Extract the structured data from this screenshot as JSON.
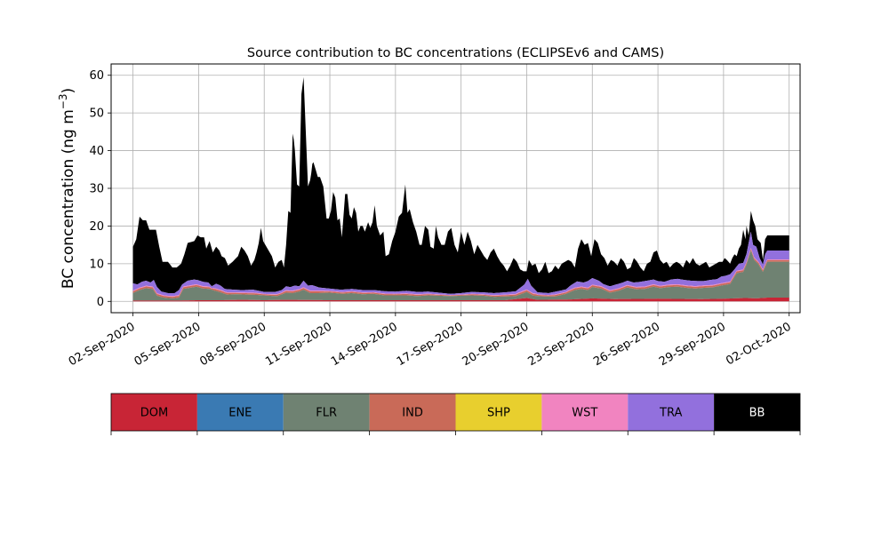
{
  "chart_data": {
    "type": "area",
    "stacked": true,
    "title": "Source contribution to BC concentrations (ECLIPSEv6 and CAMS)",
    "xlabel": "",
    "ylabel": "BC concentration (ng m",
    "ylabel_sup": "−3",
    "ylabel_close": ")",
    "xlim": [
      "2020-09-01T00:00",
      "2020-10-02T12:00"
    ],
    "ylim": [
      -3,
      63
    ],
    "yticks": [
      0,
      10,
      20,
      30,
      40,
      50,
      60
    ],
    "ytick_labels": [
      "0",
      "10",
      "20",
      "30",
      "40",
      "50",
      "60"
    ],
    "xticks": [
      "02-Sep-2020",
      "05-Sep-2020",
      "08-Sep-2020",
      "11-Sep-2020",
      "14-Sep-2020",
      "17-Sep-2020",
      "20-Sep-2020",
      "23-Sep-2020",
      "26-Sep-2020",
      "29-Sep-2020",
      "02-Oct-2020"
    ],
    "grid": true,
    "legend_position": "below plot (colour bar)",
    "legend": [
      {
        "name": "DOM",
        "color": "#c82536"
      },
      {
        "name": "ENE",
        "color": "#3a7ab3"
      },
      {
        "name": "FLR",
        "color": "#6f8272"
      },
      {
        "name": "IND",
        "color": "#c96a58"
      },
      {
        "name": "SHP",
        "color": "#e8cf2e"
      },
      {
        "name": "WST",
        "color": "#f184c0"
      },
      {
        "name": "TRA",
        "color": "#9270dd"
      },
      {
        "name": "BB",
        "color": "#000000"
      }
    ],
    "start_day": 1.0,
    "end_day": 31.0,
    "total_anchors": [
      [
        1.0,
        14.5
      ],
      [
        1.15,
        16.5
      ],
      [
        1.3,
        22.5
      ],
      [
        1.45,
        21.5
      ],
      [
        1.6,
        21.5
      ],
      [
        1.75,
        19.0
      ],
      [
        1.9,
        19.0
      ],
      [
        2.05,
        19.0
      ],
      [
        2.2,
        14.5
      ],
      [
        2.35,
        10.5
      ],
      [
        2.6,
        10.5
      ],
      [
        2.8,
        9.0
      ],
      [
        3.0,
        9.0
      ],
      [
        3.2,
        10.0
      ],
      [
        3.35,
        12.5
      ],
      [
        3.5,
        15.5
      ],
      [
        3.8,
        16.0
      ],
      [
        3.95,
        17.5
      ],
      [
        4.1,
        17.0
      ],
      [
        4.25,
        17.0
      ],
      [
        4.35,
        14.0
      ],
      [
        4.5,
        16.0
      ],
      [
        4.65,
        13.0
      ],
      [
        4.8,
        14.5
      ],
      [
        4.95,
        13.5
      ],
      [
        5.05,
        12.0
      ],
      [
        5.2,
        11.5
      ],
      [
        5.35,
        9.5
      ],
      [
        5.55,
        10.5
      ],
      [
        5.8,
        12.0
      ],
      [
        5.95,
        14.5
      ],
      [
        6.1,
        13.5
      ],
      [
        6.25,
        12.0
      ],
      [
        6.4,
        9.5
      ],
      [
        6.55,
        11.0
      ],
      [
        6.65,
        13.0
      ],
      [
        6.75,
        15.5
      ],
      [
        6.85,
        19.5
      ],
      [
        6.95,
        16.0
      ],
      [
        7.15,
        14.0
      ],
      [
        7.35,
        12.0
      ],
      [
        7.5,
        9.0
      ],
      [
        7.65,
        10.5
      ],
      [
        7.8,
        11.0
      ],
      [
        7.9,
        9.0
      ],
      [
        8.0,
        15.0
      ],
      [
        8.1,
        24.0
      ],
      [
        8.2,
        23.5
      ],
      [
        8.3,
        44.5
      ],
      [
        8.38,
        42.0
      ],
      [
        8.5,
        31.0
      ],
      [
        8.6,
        30.5
      ],
      [
        8.7,
        55.0
      ],
      [
        8.8,
        59.5
      ],
      [
        8.9,
        45.0
      ],
      [
        9.0,
        30.5
      ],
      [
        9.12,
        32.5
      ],
      [
        9.22,
        37.5
      ],
      [
        9.35,
        35.0
      ],
      [
        9.45,
        33.0
      ],
      [
        9.55,
        33.0
      ],
      [
        9.7,
        30.5
      ],
      [
        9.85,
        22.0
      ],
      [
        9.95,
        22.0
      ],
      [
        10.05,
        24.0
      ],
      [
        10.15,
        29.0
      ],
      [
        10.25,
        27.5
      ],
      [
        10.35,
        21.5
      ],
      [
        10.45,
        22.0
      ],
      [
        10.55,
        17.0
      ],
      [
        10.7,
        28.5
      ],
      [
        10.8,
        28.5
      ],
      [
        10.9,
        23.0
      ],
      [
        11.0,
        22.0
      ],
      [
        11.1,
        25.0
      ],
      [
        11.2,
        23.5
      ],
      [
        11.3,
        18.5
      ],
      [
        11.4,
        20.0
      ],
      [
        11.5,
        20.0
      ],
      [
        11.6,
        18.5
      ],
      [
        11.75,
        21.0
      ],
      [
        11.85,
        19.5
      ],
      [
        11.95,
        21.0
      ],
      [
        12.05,
        25.5
      ],
      [
        12.15,
        20.0
      ],
      [
        12.3,
        17.5
      ],
      [
        12.45,
        18.5
      ],
      [
        12.55,
        12.0
      ],
      [
        12.7,
        12.5
      ],
      [
        12.85,
        16.0
      ],
      [
        13.0,
        18.5
      ],
      [
        13.15,
        22.5
      ],
      [
        13.3,
        23.5
      ],
      [
        13.45,
        31.0
      ],
      [
        13.55,
        23.5
      ],
      [
        13.65,
        24.5
      ],
      [
        13.8,
        21.0
      ],
      [
        13.95,
        18.5
      ],
      [
        14.1,
        15.0
      ],
      [
        14.2,
        15.0
      ],
      [
        14.35,
        20.0
      ],
      [
        14.5,
        19.0
      ],
      [
        14.6,
        14.5
      ],
      [
        14.75,
        14.0
      ],
      [
        14.85,
        20.0
      ],
      [
        14.95,
        17.0
      ],
      [
        15.1,
        15.0
      ],
      [
        15.25,
        15.0
      ],
      [
        15.4,
        18.5
      ],
      [
        15.55,
        19.5
      ],
      [
        15.7,
        15.0
      ],
      [
        15.85,
        13.0
      ],
      [
        16.0,
        18.5
      ],
      [
        16.15,
        15.0
      ],
      [
        16.3,
        18.5
      ],
      [
        16.45,
        16.0
      ],
      [
        16.6,
        12.5
      ],
      [
        16.75,
        15.0
      ],
      [
        16.9,
        13.5
      ],
      [
        17.05,
        12.0
      ],
      [
        17.2,
        11.0
      ],
      [
        17.35,
        13.0
      ],
      [
        17.5,
        14.0
      ],
      [
        17.65,
        12.0
      ],
      [
        17.8,
        10.5
      ],
      [
        17.95,
        9.5
      ],
      [
        18.1,
        8.0
      ],
      [
        18.25,
        9.5
      ],
      [
        18.4,
        11.5
      ],
      [
        18.55,
        10.5
      ],
      [
        18.7,
        8.5
      ],
      [
        18.85,
        8.0
      ],
      [
        19.0,
        8.0
      ],
      [
        19.1,
        11.0
      ],
      [
        19.25,
        9.5
      ],
      [
        19.4,
        10.0
      ],
      [
        19.55,
        7.5
      ],
      [
        19.7,
        8.5
      ],
      [
        19.85,
        10.5
      ],
      [
        20.0,
        7.5
      ],
      [
        20.15,
        8.0
      ],
      [
        20.3,
        9.5
      ],
      [
        20.45,
        8.5
      ],
      [
        20.6,
        10.0
      ],
      [
        20.75,
        10.5
      ],
      [
        20.9,
        11.0
      ],
      [
        21.05,
        10.5
      ],
      [
        21.2,
        9.0
      ],
      [
        21.35,
        14.0
      ],
      [
        21.5,
        16.5
      ],
      [
        21.65,
        15.0
      ],
      [
        21.8,
        15.5
      ],
      [
        21.95,
        12.0
      ],
      [
        22.1,
        16.5
      ],
      [
        22.25,
        15.5
      ],
      [
        22.4,
        12.5
      ],
      [
        22.55,
        11.5
      ],
      [
        22.7,
        9.5
      ],
      [
        22.85,
        11.0
      ],
      [
        23.0,
        10.5
      ],
      [
        23.15,
        9.5
      ],
      [
        23.3,
        11.5
      ],
      [
        23.45,
        10.5
      ],
      [
        23.6,
        8.5
      ],
      [
        23.75,
        9.0
      ],
      [
        23.9,
        11.5
      ],
      [
        24.05,
        10.5
      ],
      [
        24.2,
        9.0
      ],
      [
        24.35,
        8.0
      ],
      [
        24.5,
        10.0
      ],
      [
        24.65,
        10.5
      ],
      [
        24.8,
        13.0
      ],
      [
        24.95,
        13.5
      ],
      [
        25.1,
        11.0
      ],
      [
        25.25,
        10.0
      ],
      [
        25.4,
        10.5
      ],
      [
        25.55,
        9.0
      ],
      [
        25.7,
        10.0
      ],
      [
        25.85,
        10.5
      ],
      [
        26.0,
        10.0
      ],
      [
        26.15,
        9.0
      ],
      [
        26.3,
        11.0
      ],
      [
        26.45,
        10.0
      ],
      [
        26.6,
        11.5
      ],
      [
        26.75,
        10.0
      ],
      [
        26.9,
        9.5
      ],
      [
        27.05,
        10.0
      ],
      [
        27.2,
        10.5
      ],
      [
        27.35,
        9.0
      ],
      [
        27.5,
        9.5
      ],
      [
        27.65,
        10.0
      ],
      [
        27.8,
        10.5
      ],
      [
        27.95,
        10.5
      ],
      [
        28.05,
        11.5
      ],
      [
        28.15,
        11.0
      ],
      [
        28.3,
        10.0
      ],
      [
        28.4,
        11.5
      ],
      [
        28.5,
        12.5
      ],
      [
        28.6,
        12.0
      ],
      [
        28.7,
        14.0
      ],
      [
        28.8,
        15.0
      ],
      [
        28.9,
        19.0
      ],
      [
        29.0,
        16.5
      ],
      [
        29.05,
        20.0
      ],
      [
        29.15,
        17.5
      ],
      [
        29.25,
        24.0
      ],
      [
        29.35,
        21.5
      ],
      [
        29.45,
        20.0
      ],
      [
        29.55,
        16.5
      ],
      [
        29.7,
        15.5
      ],
      [
        29.8,
        11.0
      ],
      [
        29.9,
        16.5
      ],
      [
        30.0,
        17.5
      ]
    ],
    "other_anchors": [
      [
        1.0,
        4.8
      ],
      [
        1.2,
        4.5
      ],
      [
        1.4,
        5.2
      ],
      [
        1.6,
        5.5
      ],
      [
        1.8,
        5.0
      ],
      [
        1.95,
        5.7
      ],
      [
        2.1,
        3.8
      ],
      [
        2.3,
        2.6
      ],
      [
        2.6,
        2.2
      ],
      [
        2.9,
        2.2
      ],
      [
        3.1,
        3.0
      ],
      [
        3.25,
        4.5
      ],
      [
        3.5,
        5.5
      ],
      [
        3.8,
        5.8
      ],
      [
        4.0,
        5.6
      ],
      [
        4.2,
        5.2
      ],
      [
        4.45,
        5.0
      ],
      [
        4.6,
        4.0
      ],
      [
        4.8,
        4.7
      ],
      [
        5.0,
        4.2
      ],
      [
        5.2,
        3.3
      ],
      [
        5.6,
        3.1
      ],
      [
        6.0,
        3.0
      ],
      [
        6.5,
        3.1
      ],
      [
        7.0,
        2.5
      ],
      [
        7.5,
        2.5
      ],
      [
        7.8,
        3.0
      ],
      [
        8.0,
        4.0
      ],
      [
        8.2,
        3.8
      ],
      [
        8.4,
        4.2
      ],
      [
        8.6,
        4.0
      ],
      [
        8.8,
        5.5
      ],
      [
        9.0,
        4.2
      ],
      [
        9.2,
        4.3
      ],
      [
        9.5,
        3.7
      ],
      [
        10.0,
        3.4
      ],
      [
        10.5,
        3.1
      ],
      [
        11.0,
        3.3
      ],
      [
        11.5,
        3.0
      ],
      [
        12.0,
        3.0
      ],
      [
        12.5,
        2.7
      ],
      [
        13.0,
        2.6
      ],
      [
        13.5,
        2.8
      ],
      [
        14.0,
        2.5
      ],
      [
        14.5,
        2.6
      ],
      [
        15.0,
        2.3
      ],
      [
        15.5,
        2.0
      ],
      [
        16.0,
        2.2
      ],
      [
        16.5,
        2.5
      ],
      [
        17.0,
        2.4
      ],
      [
        17.5,
        2.2
      ],
      [
        18.0,
        2.4
      ],
      [
        18.5,
        2.7
      ],
      [
        18.9,
        4.5
      ],
      [
        19.05,
        6.0
      ],
      [
        19.2,
        4.2
      ],
      [
        19.5,
        2.4
      ],
      [
        20.0,
        2.2
      ],
      [
        20.5,
        2.8
      ],
      [
        20.8,
        3.2
      ],
      [
        21.0,
        4.2
      ],
      [
        21.3,
        5.3
      ],
      [
        21.6,
        5.0
      ],
      [
        21.8,
        5.4
      ],
      [
        22.0,
        6.2
      ],
      [
        22.3,
        5.5
      ],
      [
        22.5,
        4.6
      ],
      [
        22.8,
        4.0
      ],
      [
        23.1,
        4.5
      ],
      [
        23.4,
        5.0
      ],
      [
        23.6,
        5.5
      ],
      [
        23.9,
        5.0
      ],
      [
        24.2,
        5.2
      ],
      [
        24.5,
        5.5
      ],
      [
        24.8,
        5.8
      ],
      [
        25.0,
        5.4
      ],
      [
        25.3,
        5.2
      ],
      [
        25.6,
        5.8
      ],
      [
        25.9,
        6.0
      ],
      [
        26.2,
        5.7
      ],
      [
        26.5,
        5.5
      ],
      [
        26.8,
        5.4
      ],
      [
        27.1,
        5.4
      ],
      [
        27.4,
        5.7
      ],
      [
        27.7,
        5.9
      ],
      [
        27.9,
        6.6
      ],
      [
        28.1,
        6.8
      ],
      [
        28.3,
        7.2
      ],
      [
        28.5,
        8.5
      ],
      [
        28.7,
        10.0
      ],
      [
        28.9,
        10.2
      ],
      [
        29.05,
        12.6
      ],
      [
        29.25,
        18.5
      ],
      [
        29.35,
        15.0
      ],
      [
        29.5,
        14.5
      ],
      [
        29.65,
        11.5
      ],
      [
        29.8,
        9.8
      ],
      [
        29.9,
        12.5
      ],
      [
        30.0,
        13.5
      ]
    ],
    "flr_anchors": [
      [
        1.0,
        2.2
      ],
      [
        1.3,
        3.0
      ],
      [
        1.6,
        3.5
      ],
      [
        1.9,
        3.3
      ],
      [
        2.1,
        1.5
      ],
      [
        2.4,
        1.0
      ],
      [
        2.8,
        0.8
      ],
      [
        3.1,
        1.0
      ],
      [
        3.3,
        3.3
      ],
      [
        3.6,
        3.6
      ],
      [
        3.9,
        3.9
      ],
      [
        4.2,
        3.4
      ],
      [
        4.5,
        3.3
      ],
      [
        4.7,
        2.9
      ],
      [
        5.0,
        2.4
      ],
      [
        5.3,
        1.8
      ],
      [
        5.7,
        1.9
      ],
      [
        6.2,
        1.8
      ],
      [
        6.7,
        1.7
      ],
      [
        7.2,
        1.5
      ],
      [
        7.6,
        1.4
      ],
      [
        8.0,
        2.3
      ],
      [
        8.3,
        2.2
      ],
      [
        8.6,
        2.6
      ],
      [
        8.8,
        3.1
      ],
      [
        9.1,
        2.2
      ],
      [
        9.5,
        2.2
      ],
      [
        10.0,
        2.3
      ],
      [
        10.6,
        2.0
      ],
      [
        11.0,
        2.2
      ],
      [
        11.5,
        1.9
      ],
      [
        12.0,
        2.0
      ],
      [
        12.5,
        1.6
      ],
      [
        13.0,
        1.6
      ],
      [
        13.5,
        1.6
      ],
      [
        14.0,
        1.4
      ],
      [
        14.5,
        1.6
      ],
      [
        15.0,
        1.5
      ],
      [
        15.5,
        1.4
      ],
      [
        16.0,
        1.5
      ],
      [
        16.5,
        1.6
      ],
      [
        17.0,
        1.5
      ],
      [
        17.5,
        1.2
      ],
      [
        18.0,
        1.3
      ],
      [
        18.5,
        1.4
      ],
      [
        19.0,
        2.5
      ],
      [
        19.3,
        1.5
      ],
      [
        19.8,
        1.3
      ],
      [
        20.3,
        1.3
      ],
      [
        20.8,
        2.0
      ],
      [
        21.2,
        3.0
      ],
      [
        21.5,
        3.3
      ],
      [
        21.8,
        3.0
      ],
      [
        22.0,
        3.8
      ],
      [
        22.4,
        3.4
      ],
      [
        22.8,
        2.3
      ],
      [
        23.2,
        2.8
      ],
      [
        23.6,
        3.7
      ],
      [
        24.0,
        3.2
      ],
      [
        24.4,
        3.3
      ],
      [
        24.8,
        3.9
      ],
      [
        25.1,
        3.5
      ],
      [
        25.5,
        3.8
      ],
      [
        25.9,
        3.9
      ],
      [
        26.3,
        3.6
      ],
      [
        26.7,
        3.4
      ],
      [
        27.1,
        3.6
      ],
      [
        27.5,
        3.7
      ],
      [
        27.9,
        4.2
      ],
      [
        28.3,
        4.6
      ],
      [
        28.6,
        7.5
      ],
      [
        28.9,
        7.8
      ],
      [
        29.05,
        9.8
      ],
      [
        29.25,
        13.5
      ],
      [
        29.4,
        11.0
      ],
      [
        29.6,
        9.8
      ],
      [
        29.8,
        7.8
      ],
      [
        30.0,
        10.5
      ]
    ],
    "dom_anchors": [
      [
        1.0,
        0.2
      ],
      [
        3.0,
        0.2
      ],
      [
        4.0,
        0.3
      ],
      [
        5.0,
        0.3
      ],
      [
        6.0,
        0.4
      ],
      [
        7.0,
        0.3
      ],
      [
        8.0,
        0.4
      ],
      [
        10.0,
        0.3
      ],
      [
        12.0,
        0.3
      ],
      [
        15.0,
        0.3
      ],
      [
        18.0,
        0.3
      ],
      [
        19.0,
        0.9
      ],
      [
        19.5,
        0.4
      ],
      [
        21.0,
        0.5
      ],
      [
        22.0,
        0.8
      ],
      [
        23.0,
        0.6
      ],
      [
        25.0,
        0.7
      ],
      [
        27.0,
        0.6
      ],
      [
        28.0,
        0.7
      ],
      [
        29.0,
        0.9
      ],
      [
        29.5,
        0.8
      ],
      [
        30.0,
        1.0
      ]
    ]
  }
}
